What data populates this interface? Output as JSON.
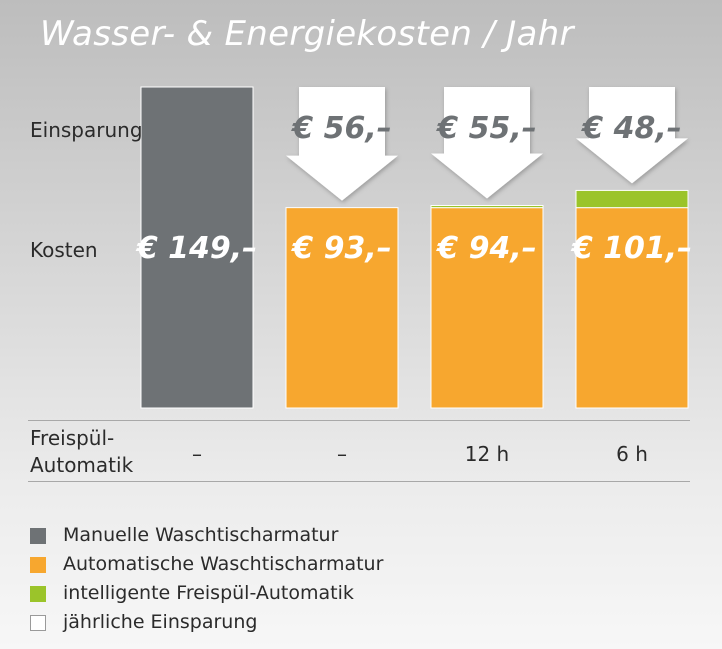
{
  "chart_data": {
    "type": "bar",
    "title": "Wasser- & Energiekosten / Jahr",
    "row_labels": {
      "savings": "Einsparung",
      "cost": "Kosten",
      "automatic_flush": "Freispül-\nAutomatik"
    },
    "unit": "€ / Jahr",
    "stacked": true,
    "columns": [
      {
        "cost": 149,
        "automatic_part": 149,
        "flush_part": 0,
        "savings": null,
        "cost_label": "€ 149,–",
        "savings_label": "",
        "automatic_flush": "–"
      },
      {
        "cost": 93,
        "automatic_part": 93,
        "flush_part": 0,
        "savings": 56,
        "cost_label": "€ 93,–",
        "savings_label": "€ 56,–",
        "automatic_flush": "–"
      },
      {
        "cost": 94,
        "automatic_part": 93,
        "flush_part": 1,
        "savings": 55,
        "cost_label": "€ 94,–",
        "savings_label": "€ 55,–",
        "automatic_flush": "12 h"
      },
      {
        "cost": 101,
        "automatic_part": 93,
        "flush_part": 8,
        "savings": 48,
        "cost_label": "€ 101,–",
        "savings_label": "€ 48,–",
        "automatic_flush": "6 h"
      }
    ],
    "series": [
      {
        "name": "Manuelle Waschtischarmatur",
        "color": "#6e7275"
      },
      {
        "name": "Automatische Waschtischarmatur",
        "color": "#f7a72f"
      },
      {
        "name": "intelligente Freispül-Automatik",
        "color": "#9bc42a"
      },
      {
        "name": "jährliche Einsparung",
        "color": "#ffffff"
      }
    ],
    "ylim": [
      0,
      160
    ],
    "legend_position": "bottom"
  }
}
